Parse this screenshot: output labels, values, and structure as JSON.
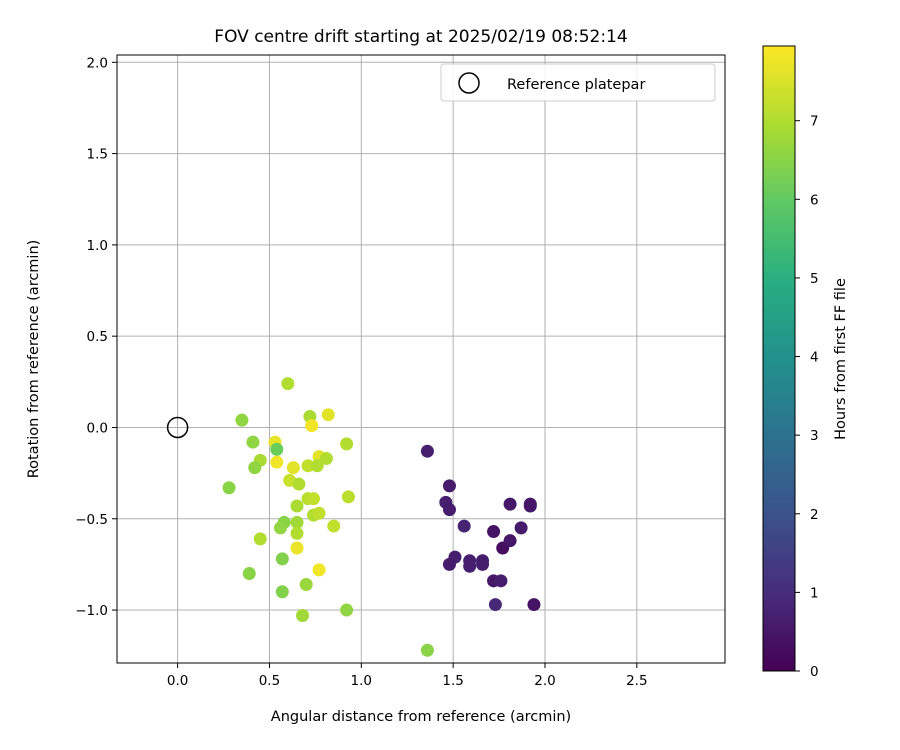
{
  "chart_data": {
    "type": "scatter",
    "title": "FOV centre drift starting at 2025/02/19 08:52:14",
    "xlabel": "Angular distance from reference (arcmin)",
    "ylabel": "Rotation from reference (arcmin)",
    "xlim": [
      -0.33,
      2.98
    ],
    "ylim": [
      -1.29,
      2.04
    ],
    "xticks": [
      0.0,
      0.5,
      1.0,
      1.5,
      2.0,
      2.5
    ],
    "xtick_labels": [
      "0.0",
      "0.5",
      "1.0",
      "1.5",
      "2.0",
      "2.5"
    ],
    "yticks": [
      -1.0,
      -0.5,
      0.0,
      0.5,
      1.0,
      1.5,
      2.0
    ],
    "ytick_labels": [
      "−1.0",
      "−0.5",
      "0.0",
      "0.5",
      "1.0",
      "1.5",
      "2.0"
    ],
    "grid": true,
    "legend": {
      "position": "top-right",
      "entries": [
        "Reference platepar"
      ]
    },
    "reference_point": {
      "x": 0.0,
      "y": 0.0,
      "marker": "open-circle"
    },
    "colorbar": {
      "label": "Hours from first FF file",
      "colormap": "viridis",
      "min": 0,
      "max": 7.95,
      "ticks": [
        0,
        1,
        2,
        3,
        4,
        5,
        6,
        7
      ],
      "tick_labels": [
        "0",
        "1",
        "2",
        "3",
        "4",
        "5",
        "6",
        "7"
      ]
    },
    "points": [
      {
        "x": 1.36,
        "y": -0.13,
        "c": 0.7
      },
      {
        "x": 1.48,
        "y": -0.32,
        "c": 0.6
      },
      {
        "x": 1.46,
        "y": -0.41,
        "c": 0.7
      },
      {
        "x": 1.48,
        "y": -0.45,
        "c": 0.6
      },
      {
        "x": 1.56,
        "y": -0.54,
        "c": 0.8
      },
      {
        "x": 1.51,
        "y": -0.71,
        "c": 0.7
      },
      {
        "x": 1.48,
        "y": -0.75,
        "c": 0.6
      },
      {
        "x": 1.59,
        "y": -0.73,
        "c": 0.7
      },
      {
        "x": 1.59,
        "y": -0.76,
        "c": 0.7
      },
      {
        "x": 1.66,
        "y": -0.73,
        "c": 0.6
      },
      {
        "x": 1.66,
        "y": -0.75,
        "c": 0.6
      },
      {
        "x": 1.72,
        "y": -0.57,
        "c": 0.4
      },
      {
        "x": 1.72,
        "y": -0.84,
        "c": 0.5
      },
      {
        "x": 1.76,
        "y": -0.84,
        "c": 0.6
      },
      {
        "x": 1.73,
        "y": -0.97,
        "c": 0.9
      },
      {
        "x": 1.77,
        "y": -0.66,
        "c": 0.3
      },
      {
        "x": 1.81,
        "y": -0.62,
        "c": 0.5
      },
      {
        "x": 1.81,
        "y": -0.42,
        "c": 0.5
      },
      {
        "x": 1.87,
        "y": -0.55,
        "c": 0.6
      },
      {
        "x": 1.92,
        "y": -0.42,
        "c": 0.5
      },
      {
        "x": 1.92,
        "y": -0.43,
        "c": 0.5
      },
      {
        "x": 1.94,
        "y": -0.97,
        "c": 0.4
      },
      {
        "x": 0.6,
        "y": 0.24,
        "c": 7.0
      },
      {
        "x": 0.35,
        "y": 0.04,
        "c": 6.6
      },
      {
        "x": 0.72,
        "y": 0.06,
        "c": 6.9
      },
      {
        "x": 0.82,
        "y": 0.07,
        "c": 7.6
      },
      {
        "x": 0.73,
        "y": 0.01,
        "c": 7.8
      },
      {
        "x": 0.41,
        "y": -0.08,
        "c": 6.6
      },
      {
        "x": 0.53,
        "y": -0.08,
        "c": 7.7
      },
      {
        "x": 0.54,
        "y": -0.12,
        "c": 6.1
      },
      {
        "x": 0.92,
        "y": -0.09,
        "c": 7.0
      },
      {
        "x": 0.77,
        "y": -0.16,
        "c": 7.6
      },
      {
        "x": 0.81,
        "y": -0.17,
        "c": 7.0
      },
      {
        "x": 0.45,
        "y": -0.18,
        "c": 6.9
      },
      {
        "x": 0.42,
        "y": -0.22,
        "c": 6.6
      },
      {
        "x": 0.54,
        "y": -0.19,
        "c": 7.8
      },
      {
        "x": 0.63,
        "y": -0.22,
        "c": 7.6
      },
      {
        "x": 0.71,
        "y": -0.21,
        "c": 7.2
      },
      {
        "x": 0.76,
        "y": -0.21,
        "c": 7.0
      },
      {
        "x": 0.28,
        "y": -0.33,
        "c": 6.5
      },
      {
        "x": 0.61,
        "y": -0.29,
        "c": 7.3
      },
      {
        "x": 0.66,
        "y": -0.31,
        "c": 7.0
      },
      {
        "x": 0.71,
        "y": -0.39,
        "c": 7.1
      },
      {
        "x": 0.74,
        "y": -0.39,
        "c": 7.2
      },
      {
        "x": 0.65,
        "y": -0.43,
        "c": 6.9
      },
      {
        "x": 0.93,
        "y": -0.38,
        "c": 7.1
      },
      {
        "x": 0.74,
        "y": -0.48,
        "c": 7.0
      },
      {
        "x": 0.77,
        "y": -0.47,
        "c": 7.2
      },
      {
        "x": 0.58,
        "y": -0.52,
        "c": 6.5
      },
      {
        "x": 0.56,
        "y": -0.55,
        "c": 6.6
      },
      {
        "x": 0.65,
        "y": -0.52,
        "c": 6.8
      },
      {
        "x": 0.85,
        "y": -0.54,
        "c": 7.2
      },
      {
        "x": 0.65,
        "y": -0.58,
        "c": 7.0
      },
      {
        "x": 0.45,
        "y": -0.61,
        "c": 7.0
      },
      {
        "x": 0.65,
        "y": -0.66,
        "c": 7.7
      },
      {
        "x": 0.57,
        "y": -0.72,
        "c": 6.4
      },
      {
        "x": 0.77,
        "y": -0.78,
        "c": 7.8
      },
      {
        "x": 0.39,
        "y": -0.8,
        "c": 6.5
      },
      {
        "x": 0.7,
        "y": -0.86,
        "c": 6.7
      },
      {
        "x": 0.57,
        "y": -0.9,
        "c": 6.4
      },
      {
        "x": 0.92,
        "y": -1.0,
        "c": 6.6
      },
      {
        "x": 0.68,
        "y": -1.03,
        "c": 6.8
      },
      {
        "x": 1.36,
        "y": -1.22,
        "c": 6.5
      }
    ]
  }
}
